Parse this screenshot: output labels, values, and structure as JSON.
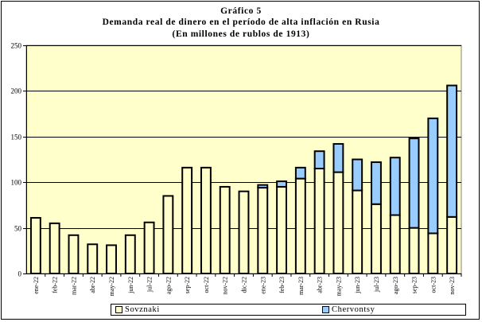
{
  "chart_data": {
    "type": "bar",
    "stacked": true,
    "title": "Gráfico 5",
    "subtitle": "Demanda real de dinero en el período de alta inflación en Rusia",
    "units_note": "(En millones de rublos de 1913)",
    "categories": [
      "ene-22",
      "feb-22",
      "mar-22",
      "abr-22",
      "may-22",
      "jun-22",
      "jul-22",
      "ago-22",
      "sep-22",
      "oct-22",
      "nov-22",
      "dic-22",
      "ene-23",
      "feb-23",
      "mar-23",
      "abr-23",
      "may-23",
      "jun-23",
      "jul-23",
      "ago-23",
      "sep-23",
      "oct-23",
      "nov-23"
    ],
    "series": [
      {
        "name": "Sovznaki",
        "color": "#FFFFCC",
        "values": [
          61,
          55,
          42,
          32,
          31,
          42,
          56,
          85,
          116,
          116,
          95,
          90,
          94,
          95,
          104,
          115,
          111,
          91,
          76,
          64,
          50,
          44,
          62
        ]
      },
      {
        "name": "Chervontsy",
        "color": "#99CCFF",
        "values": [
          0,
          0,
          0,
          0,
          0,
          0,
          0,
          0,
          0,
          0,
          0,
          0,
          3,
          6,
          12,
          19,
          31,
          34,
          46,
          63,
          98,
          126,
          144
        ]
      }
    ],
    "ylim": [
      0,
      250
    ],
    "yticks": [
      0,
      50,
      100,
      150,
      200,
      250
    ],
    "grid": true,
    "plot_background": "#FFFFCC",
    "legend_position": "bottom"
  }
}
